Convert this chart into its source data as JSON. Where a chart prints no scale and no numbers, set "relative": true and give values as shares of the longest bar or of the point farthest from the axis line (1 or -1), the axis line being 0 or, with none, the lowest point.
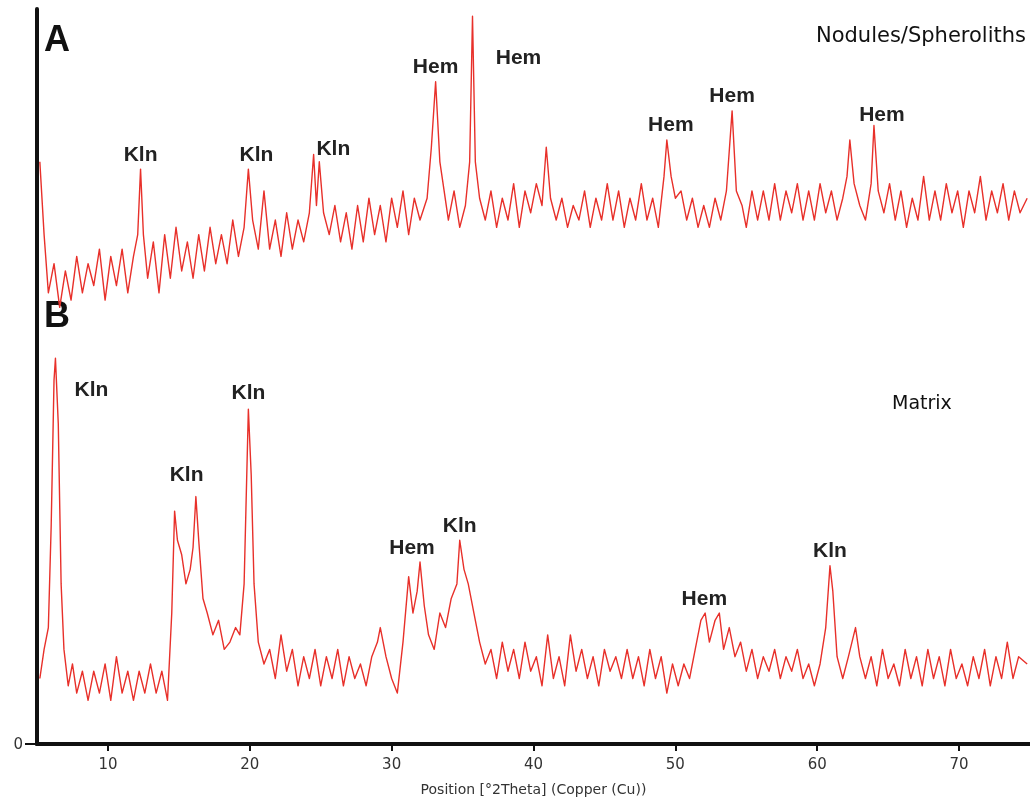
{
  "chart_data": {
    "type": "line",
    "relative": true,
    "xlabel": "Position [°2Theta] (Copper (Cu))",
    "xlim": [
      5,
      75
    ],
    "xticks": [
      10,
      20,
      30,
      40,
      50,
      60,
      70
    ],
    "marker": "none",
    "grid": false,
    "series": [
      {
        "color": "#e8302a",
        "x": [
          5.2,
          5.5,
          5.8,
          6.2,
          6.6,
          7.0,
          7.4,
          7.8,
          8.2,
          8.6,
          9.0,
          9.4,
          9.8,
          10.2,
          10.6,
          11.0,
          11.4,
          11.8,
          12.1,
          12.3,
          12.5,
          12.8,
          13.2,
          13.6,
          14.0,
          14.4,
          14.8,
          15.2,
          15.6,
          16.0,
          16.4,
          16.8,
          17.2,
          17.6,
          18.0,
          18.4,
          18.8,
          19.2,
          19.6,
          19.9,
          20.2,
          20.6,
          21.0,
          21.4,
          21.8,
          22.2,
          22.6,
          23.0,
          23.4,
          23.8,
          24.2,
          24.5,
          24.7,
          24.9,
          25.2,
          25.6,
          26.0,
          26.4,
          26.8,
          27.2,
          27.6,
          28.0,
          28.4,
          28.8,
          29.2,
          29.6,
          30.0,
          30.4,
          30.8,
          31.2,
          31.6,
          32.0,
          32.5,
          32.8,
          33.1,
          33.4,
          33.7,
          34.0,
          34.4,
          34.8,
          35.2,
          35.5,
          35.7,
          35.9,
          36.2,
          36.6,
          37.0,
          37.4,
          37.8,
          38.2,
          38.6,
          39.0,
          39.4,
          39.8,
          40.2,
          40.6,
          40.9,
          41.2,
          41.6,
          42.0,
          42.4,
          42.8,
          43.2,
          43.6,
          44.0,
          44.4,
          44.8,
          45.2,
          45.6,
          46.0,
          46.4,
          46.8,
          47.2,
          47.6,
          48.0,
          48.4,
          48.8,
          49.2,
          49.4,
          49.7,
          50.0,
          50.4,
          50.8,
          51.2,
          51.6,
          52.0,
          52.4,
          52.8,
          53.2,
          53.6,
          54.0,
          54.3,
          54.7,
          55.0,
          55.4,
          55.8,
          56.2,
          56.6,
          57.0,
          57.4,
          57.8,
          58.2,
          58.6,
          59.0,
          59.4,
          59.8,
          60.2,
          60.6,
          61.0,
          61.4,
          61.8,
          62.1,
          62.3,
          62.6,
          63.0,
          63.4,
          63.8,
          64.0,
          64.3,
          64.7,
          65.1,
          65.5,
          65.9,
          66.3,
          66.7,
          67.1,
          67.5,
          67.9,
          68.3,
          68.7,
          69.1,
          69.5,
          69.9,
          70.3,
          70.7,
          71.1,
          71.5,
          71.9,
          72.3,
          72.7,
          73.1,
          73.5,
          73.9,
          74.3,
          74.8
        ],
        "values": [
          0.8,
          0.7,
          0.62,
          0.66,
          0.6,
          0.65,
          0.61,
          0.67,
          0.62,
          0.66,
          0.63,
          0.68,
          0.61,
          0.67,
          0.63,
          0.68,
          0.62,
          0.67,
          0.7,
          0.79,
          0.7,
          0.64,
          0.69,
          0.62,
          0.7,
          0.64,
          0.71,
          0.65,
          0.69,
          0.64,
          0.7,
          0.65,
          0.71,
          0.66,
          0.7,
          0.66,
          0.72,
          0.67,
          0.71,
          0.79,
          0.72,
          0.68,
          0.76,
          0.68,
          0.72,
          0.67,
          0.73,
          0.68,
          0.72,
          0.69,
          0.73,
          0.81,
          0.74,
          0.8,
          0.73,
          0.7,
          0.74,
          0.69,
          0.73,
          0.68,
          0.74,
          0.69,
          0.75,
          0.7,
          0.74,
          0.69,
          0.75,
          0.71,
          0.76,
          0.7,
          0.75,
          0.72,
          0.75,
          0.82,
          0.91,
          0.8,
          0.76,
          0.72,
          0.76,
          0.71,
          0.74,
          0.8,
          1,
          0.8,
          0.75,
          0.72,
          0.76,
          0.71,
          0.75,
          0.72,
          0.77,
          0.71,
          0.76,
          0.73,
          0.77,
          0.74,
          0.82,
          0.75,
          0.72,
          0.75,
          0.71,
          0.74,
          0.72,
          0.76,
          0.71,
          0.75,
          0.72,
          0.77,
          0.72,
          0.76,
          0.71,
          0.75,
          0.72,
          0.77,
          0.72,
          0.75,
          0.71,
          0.78,
          0.83,
          0.78,
          0.75,
          0.76,
          0.72,
          0.75,
          0.71,
          0.74,
          0.71,
          0.75,
          0.72,
          0.76,
          0.87,
          0.76,
          0.74,
          0.71,
          0.76,
          0.72,
          0.76,
          0.72,
          0.77,
          0.72,
          0.76,
          0.73,
          0.77,
          0.72,
          0.76,
          0.72,
          0.77,
          0.73,
          0.76,
          0.72,
          0.75,
          0.78,
          0.83,
          0.77,
          0.74,
          0.72,
          0.77,
          0.85,
          0.76,
          0.73,
          0.77,
          0.72,
          0.76,
          0.71,
          0.75,
          0.72,
          0.78,
          0.72,
          0.76,
          0.72,
          0.77,
          0.73,
          0.76,
          0.71,
          0.76,
          0.73,
          0.78,
          0.72,
          0.76,
          0.73,
          0.77,
          0.72,
          0.76,
          0.73,
          0.75
        ]
      },
      {
        "color": "#e8302a",
        "x": [
          5.2,
          5.5,
          5.8,
          6.0,
          6.2,
          6.3,
          6.5,
          6.7,
          6.9,
          7.2,
          7.5,
          7.8,
          8.2,
          8.6,
          9.0,
          9.4,
          9.8,
          10.2,
          10.6,
          11.0,
          11.4,
          11.8,
          12.2,
          12.6,
          13.0,
          13.4,
          13.8,
          14.2,
          14.5,
          14.7,
          14.9,
          15.2,
          15.5,
          15.8,
          16.0,
          16.2,
          16.4,
          16.7,
          17.0,
          17.4,
          17.8,
          18.2,
          18.6,
          19.0,
          19.3,
          19.6,
          19.8,
          19.9,
          20.1,
          20.3,
          20.6,
          21.0,
          21.4,
          21.8,
          22.2,
          22.6,
          23.0,
          23.4,
          23.8,
          24.2,
          24.6,
          25.0,
          25.4,
          25.8,
          26.2,
          26.6,
          27.0,
          27.4,
          27.8,
          28.2,
          28.6,
          29.0,
          29.2,
          29.6,
          30.0,
          30.4,
          30.8,
          31.2,
          31.5,
          31.8,
          32.0,
          32.3,
          32.6,
          33.0,
          33.4,
          33.8,
          34.2,
          34.6,
          34.8,
          35.1,
          35.4,
          35.8,
          36.2,
          36.6,
          37.0,
          37.4,
          37.8,
          38.2,
          38.6,
          39.0,
          39.4,
          39.8,
          40.2,
          40.6,
          41.0,
          41.4,
          41.8,
          42.2,
          42.6,
          43.0,
          43.4,
          43.8,
          44.2,
          44.6,
          45.0,
          45.4,
          45.8,
          46.2,
          46.6,
          47.0,
          47.4,
          47.8,
          48.2,
          48.6,
          49.0,
          49.4,
          49.8,
          50.2,
          50.6,
          51.0,
          51.4,
          51.8,
          52.1,
          52.4,
          52.8,
          53.1,
          53.4,
          53.8,
          54.2,
          54.6,
          55.0,
          55.4,
          55.8,
          56.2,
          56.6,
          57.0,
          57.4,
          57.8,
          58.2,
          58.6,
          59.0,
          59.4,
          59.8,
          60.2,
          60.6,
          60.9,
          61.1,
          61.4,
          61.8,
          62.2,
          62.7,
          63.0,
          63.4,
          63.8,
          64.2,
          64.6,
          65.0,
          65.4,
          65.8,
          66.2,
          66.6,
          67.0,
          67.4,
          67.8,
          68.2,
          68.6,
          69.0,
          69.4,
          69.8,
          70.2,
          70.6,
          71.0,
          71.4,
          71.8,
          72.2,
          72.6,
          73.0,
          73.4,
          73.8,
          74.2,
          74.8
        ],
        "values": [
          0.09,
          0.13,
          0.16,
          0.3,
          0.5,
          0.53,
          0.44,
          0.22,
          0.13,
          0.08,
          0.11,
          0.07,
          0.1,
          0.06,
          0.1,
          0.07,
          0.11,
          0.06,
          0.12,
          0.07,
          0.1,
          0.06,
          0.1,
          0.07,
          0.11,
          0.07,
          0.1,
          0.06,
          0.18,
          0.32,
          0.28,
          0.26,
          0.22,
          0.24,
          0.27,
          0.34,
          0.28,
          0.2,
          0.18,
          0.15,
          0.17,
          0.13,
          0.14,
          0.16,
          0.15,
          0.22,
          0.38,
          0.46,
          0.37,
          0.22,
          0.14,
          0.11,
          0.13,
          0.09,
          0.15,
          0.1,
          0.13,
          0.08,
          0.12,
          0.09,
          0.13,
          0.08,
          0.12,
          0.09,
          0.13,
          0.08,
          0.12,
          0.09,
          0.11,
          0.08,
          0.12,
          0.14,
          0.16,
          0.12,
          0.09,
          0.07,
          0.14,
          0.23,
          0.18,
          0.21,
          0.25,
          0.19,
          0.15,
          0.13,
          0.18,
          0.16,
          0.2,
          0.22,
          0.28,
          0.24,
          0.22,
          0.18,
          0.14,
          0.11,
          0.13,
          0.09,
          0.14,
          0.1,
          0.13,
          0.09,
          0.14,
          0.1,
          0.12,
          0.08,
          0.15,
          0.09,
          0.12,
          0.08,
          0.15,
          0.1,
          0.13,
          0.09,
          0.12,
          0.08,
          0.13,
          0.1,
          0.12,
          0.09,
          0.13,
          0.09,
          0.12,
          0.08,
          0.13,
          0.09,
          0.12,
          0.07,
          0.11,
          0.08,
          0.11,
          0.09,
          0.13,
          0.17,
          0.18,
          0.14,
          0.17,
          0.18,
          0.13,
          0.16,
          0.12,
          0.14,
          0.1,
          0.13,
          0.09,
          0.12,
          0.1,
          0.13,
          0.09,
          0.12,
          0.1,
          0.13,
          0.09,
          0.11,
          0.08,
          0.11,
          0.16,
          0.245,
          0.21,
          0.12,
          0.09,
          0.12,
          0.16,
          0.12,
          0.09,
          0.12,
          0.08,
          0.13,
          0.09,
          0.11,
          0.08,
          0.13,
          0.09,
          0.12,
          0.08,
          0.13,
          0.09,
          0.12,
          0.08,
          0.13,
          0.09,
          0.11,
          0.08,
          0.12,
          0.09,
          0.13,
          0.08,
          0.12,
          0.09,
          0.14,
          0.09,
          0.12,
          0.11
        ]
      }
    ],
    "annotations": [
      "A",
      "B",
      "Nodules/Spheroliths",
      "Matrix",
      "0",
      {
        "text": "Kln",
        "x": 12.3,
        "y": 0.79
      },
      {
        "text": "Kln",
        "x": 19.9,
        "y": 0.79
      },
      {
        "text": "Kln",
        "x": 24.9,
        "y": 0.8
      },
      {
        "text": "Hem",
        "x": 33.1,
        "y": 0.91
      },
      {
        "text": "Hem",
        "x": 35.7,
        "y": 1
      },
      {
        "text": "Hem",
        "x": 49.4,
        "y": 0.83
      },
      {
        "text": "Hem",
        "x": 54.0,
        "y": 0.87
      },
      {
        "text": "Hem",
        "x": 64.0,
        "y": 0.85
      },
      {
        "text": "Kln",
        "x": 6.3,
        "y": 0.53
      },
      {
        "text": "Kln",
        "x": 19.9,
        "y": 0.46
      },
      {
        "text": "Kln",
        "x": 14.7,
        "y": 0.32
      },
      {
        "text": "Hem",
        "x": 32.0,
        "y": 0.25
      },
      {
        "text": "Kln",
        "x": 34.8,
        "y": 0.28
      },
      {
        "text": "Hem",
        "x": 53.1,
        "y": 0.18
      },
      {
        "text": "Kln",
        "x": 60.9,
        "y": 0.245
      }
    ]
  }
}
